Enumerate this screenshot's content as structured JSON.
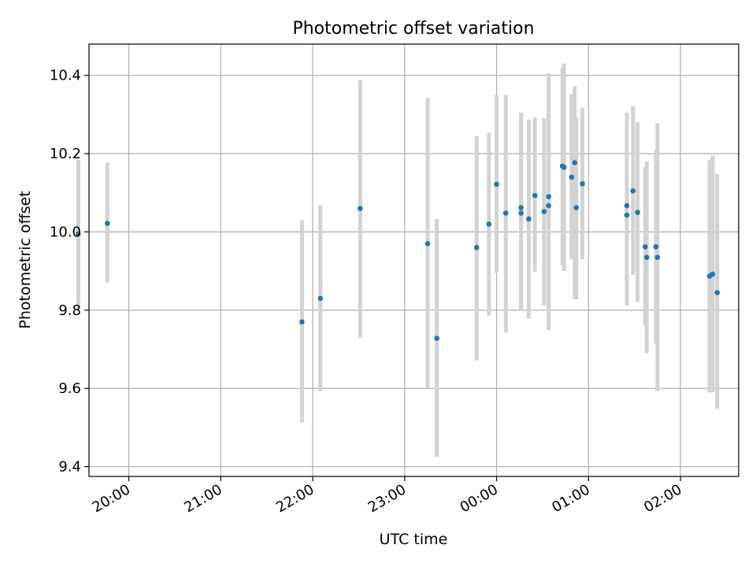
{
  "chart_data": {
    "type": "scatter",
    "title": "Photometric offset variation",
    "xlabel": "UTC time",
    "ylabel": "Photometric offset",
    "x_unit": "UTC time (HH:MM), dates crossing midnight into the next day",
    "xlim": [
      "19:34",
      "02:38"
    ],
    "ylim": [
      9.375,
      10.48
    ],
    "x_ticks": [
      "20:00",
      "21:00",
      "22:00",
      "23:00",
      "00:00",
      "01:00",
      "02:00"
    ],
    "y_ticks": [
      "9.4",
      "9.6",
      "9.8",
      "10.0",
      "10.2",
      "10.4"
    ],
    "grid": true,
    "marker_color": "#1f77b4",
    "errorbar_color": "#d3d3d3",
    "points": [
      {
        "t": "19:27",
        "y": 9.995,
        "lo": 9.805,
        "hi": 10.185
      },
      {
        "t": "19:46",
        "y": 10.022,
        "lo": 9.87,
        "hi": 10.177
      },
      {
        "t": "21:53",
        "y": 9.77,
        "lo": 9.513,
        "hi": 10.03
      },
      {
        "t": "22:05",
        "y": 9.83,
        "lo": 9.593,
        "hi": 10.068
      },
      {
        "t": "22:31",
        "y": 10.06,
        "lo": 9.73,
        "hi": 10.388
      },
      {
        "t": "23:15",
        "y": 9.97,
        "lo": 9.6,
        "hi": 10.343
      },
      {
        "t": "23:21",
        "y": 9.728,
        "lo": 9.425,
        "hi": 10.033
      },
      {
        "t": "23:47",
        "y": 9.96,
        "lo": 9.672,
        "hi": 10.245
      },
      {
        "t": "23:55",
        "y": 10.02,
        "lo": 9.786,
        "hi": 10.253
      },
      {
        "t": "00:00",
        "y": 10.122,
        "lo": 9.895,
        "hi": 10.35
      },
      {
        "t": "00:06",
        "y": 10.048,
        "lo": 9.743,
        "hi": 10.35
      },
      {
        "t": "00:16",
        "y": 10.062,
        "lo": 9.8,
        "hi": 10.305
      },
      {
        "t": "00:16",
        "y": 10.048,
        "lo": 9.8,
        "hi": 10.305
      },
      {
        "t": "00:21",
        "y": 10.033,
        "lo": 9.778,
        "hi": 10.287
      },
      {
        "t": "00:25",
        "y": 10.093,
        "lo": 9.898,
        "hi": 10.293
      },
      {
        "t": "00:31",
        "y": 10.052,
        "lo": 9.812,
        "hi": 10.29
      },
      {
        "t": "00:34",
        "y": 10.09,
        "lo": 9.75,
        "hi": 10.405
      },
      {
        "t": "00:34",
        "y": 10.067,
        "lo": 9.75,
        "hi": 10.405
      },
      {
        "t": "00:43",
        "y": 10.168,
        "lo": 9.915,
        "hi": 10.42
      },
      {
        "t": "00:44",
        "y": 10.165,
        "lo": 9.9,
        "hi": 10.43
      },
      {
        "t": "00:49",
        "y": 10.14,
        "lo": 9.93,
        "hi": 10.352
      },
      {
        "t": "00:51",
        "y": 10.177,
        "lo": 9.828,
        "hi": 10.372
      },
      {
        "t": "00:52",
        "y": 10.062,
        "lo": 9.828,
        "hi": 10.292
      },
      {
        "t": "00:56",
        "y": 10.123,
        "lo": 9.93,
        "hi": 10.318
      },
      {
        "t": "01:25",
        "y": 10.067,
        "lo": 9.812,
        "hi": 10.305
      },
      {
        "t": "01:25",
        "y": 10.043,
        "lo": 9.812,
        "hi": 10.278
      },
      {
        "t": "01:29",
        "y": 10.105,
        "lo": 9.89,
        "hi": 10.322
      },
      {
        "t": "01:32",
        "y": 10.05,
        "lo": 9.82,
        "hi": 10.28
      },
      {
        "t": "01:37",
        "y": 9.962,
        "lo": 9.76,
        "hi": 10.165
      },
      {
        "t": "01:38",
        "y": 9.935,
        "lo": 9.69,
        "hi": 10.18
      },
      {
        "t": "01:44",
        "y": 9.962,
        "lo": 9.715,
        "hi": 10.21
      },
      {
        "t": "01:45",
        "y": 9.935,
        "lo": 9.593,
        "hi": 10.278
      },
      {
        "t": "02:19",
        "y": 9.887,
        "lo": 9.59,
        "hi": 10.183
      },
      {
        "t": "02:21",
        "y": 9.892,
        "lo": 9.59,
        "hi": 10.195
      },
      {
        "t": "02:24",
        "y": 9.845,
        "lo": 9.548,
        "hi": 10.148
      }
    ]
  }
}
